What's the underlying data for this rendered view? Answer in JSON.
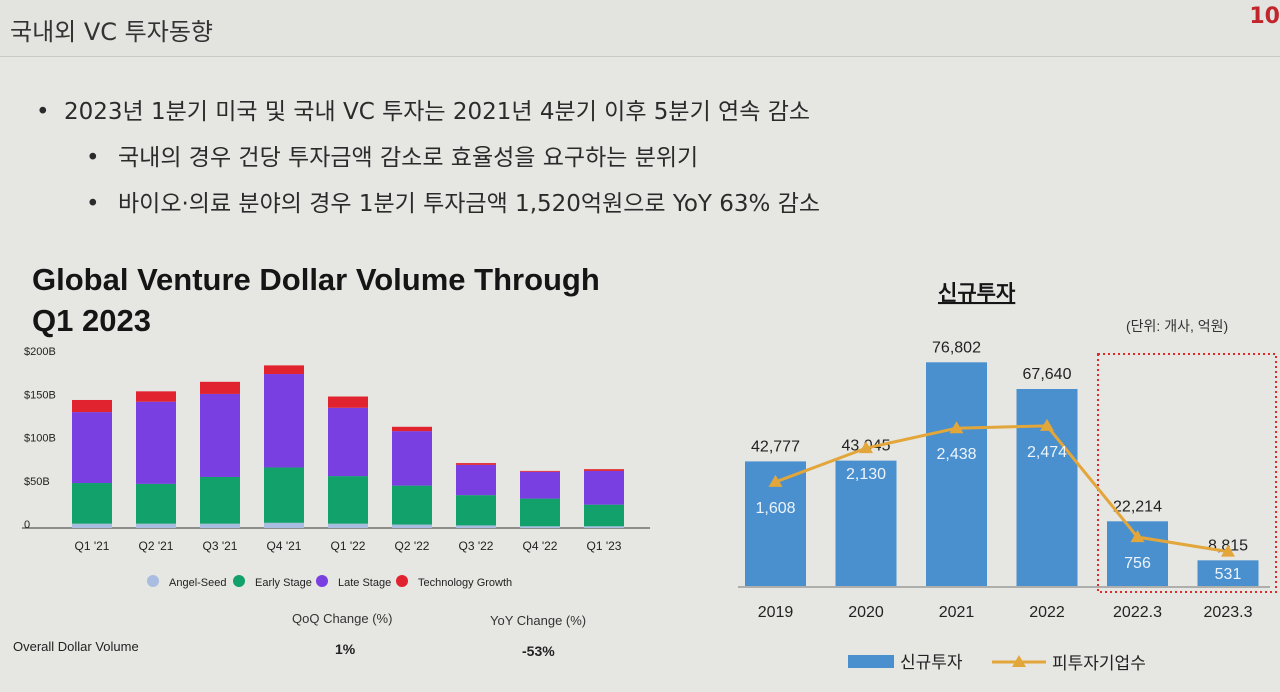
{
  "header": {
    "title": "국내외 VC 투자동향",
    "page_number": "10"
  },
  "bullets": {
    "main": "2023년 1분기 미국 및 국내 VC 투자는 2021년 4분기 이후 5분기 연속 감소",
    "sub1": "국내의 경우 건당 투자금액 감소로 효율성을 요구하는 분위기",
    "sub2": "바이오·의료 분야의 경우 1분기 투자금액 1,520억원으로 YoY 63% 감소"
  },
  "chart_data": [
    {
      "type": "bar",
      "stacked": true,
      "title": "Global Venture Dollar Volume Through Q1 2023",
      "title_line1": "Global Venture Dollar Volume Through",
      "title_line2": "Q1 2023",
      "categories": [
        "Q1 '21",
        "Q2 '21",
        "Q3 '21",
        "Q4 '21",
        "Q1 '22",
        "Q2 '22",
        "Q3 '22",
        "Q4 '22",
        "Q1 '23"
      ],
      "y_ticks": [
        "$200B",
        "$150B",
        "$100B",
        "$50B",
        "0"
      ],
      "ylim": [
        0,
        200
      ],
      "series": [
        {
          "name": "Angel-Seed",
          "color": "#a9bde0",
          "values": [
            5,
            5,
            5,
            6,
            5,
            4,
            3,
            2,
            2
          ]
        },
        {
          "name": "Early Stage",
          "color": "#12a06b",
          "values": [
            47,
            46,
            54,
            64,
            55,
            45,
            35,
            32,
            25
          ]
        },
        {
          "name": "Late Stage",
          "color": "#7a3fe0",
          "values": [
            82,
            95,
            96,
            108,
            79,
            63,
            35,
            31,
            39
          ]
        },
        {
          "name": "Technology Growth",
          "color": "#e0232e",
          "values": [
            14,
            12,
            14,
            10,
            13,
            5,
            2,
            1,
            2
          ]
        }
      ],
      "legend_position": "bottom",
      "change_table": {
        "headers": [
          "QoQ Change (%)",
          "YoY Change (%)"
        ],
        "rows": [
          {
            "label": "Overall Dollar Volume",
            "qoq": "1%",
            "yoy": "-53%"
          }
        ]
      }
    },
    {
      "type": "bar+line",
      "title": "신규투자",
      "unit_note": "(단위: 개사, 억원)",
      "categories": [
        "2019",
        "2020",
        "2021",
        "2022",
        "2022.3",
        "2023.3"
      ],
      "bar_series": {
        "name": "신규투자",
        "color": "#4a90cf",
        "values": [
          42777,
          43045,
          76802,
          67640,
          22214,
          8815
        ],
        "labels": [
          "42,777",
          "43,045",
          "76,802",
          "67,640",
          "22,214",
          "8,815"
        ]
      },
      "line_series": {
        "name": "피투자기업수",
        "color": "#e2a63a",
        "values": [
          1608,
          2130,
          2438,
          2474,
          756,
          531
        ],
        "labels": [
          "1,608",
          "2,130",
          "2,438",
          "2,474",
          "756",
          "531"
        ]
      },
      "ylim": [
        0,
        80000
      ],
      "line_ylim": [
        0,
        3600
      ],
      "highlight_categories": [
        "2022.3",
        "2023.3"
      ],
      "legend_position": "bottom"
    }
  ]
}
